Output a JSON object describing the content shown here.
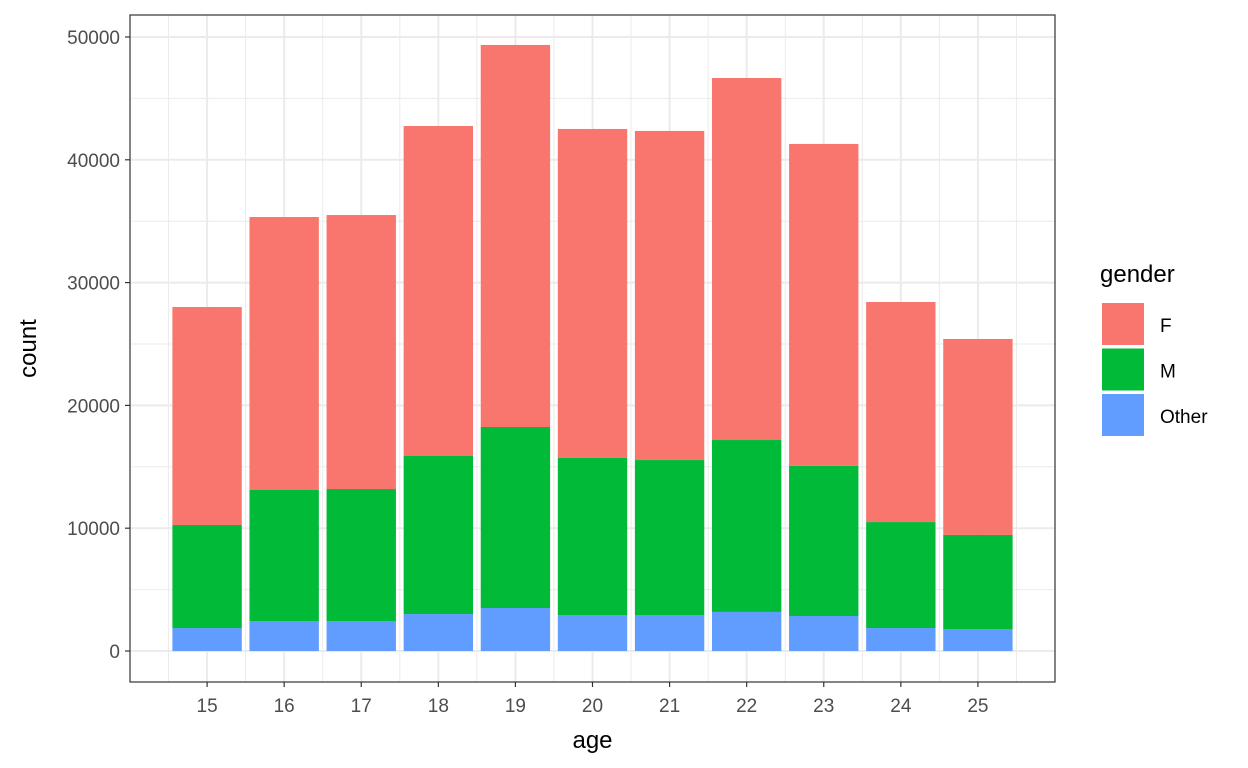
{
  "chart_data": {
    "type": "bar",
    "stacked": true,
    "title": "",
    "xlabel": "age",
    "ylabel": "count",
    "categories": [
      "15",
      "16",
      "17",
      "18",
      "19",
      "20",
      "21",
      "22",
      "23",
      "24",
      "25"
    ],
    "series": [
      {
        "name": "Other",
        "color": "#619CFF",
        "values": [
          1870,
          2440,
          2440,
          3010,
          3500,
          2930,
          2930,
          3180,
          2850,
          1870,
          1790
        ]
      },
      {
        "name": "M",
        "color": "#00BA38",
        "values": [
          8390,
          10670,
          10750,
          12870,
          14740,
          12790,
          12620,
          14000,
          12220,
          8630,
          7660
        ]
      },
      {
        "name": "F",
        "color": "#F8766D",
        "values": [
          17750,
          22230,
          22310,
          26870,
          31110,
          26790,
          26800,
          29480,
          26220,
          17920,
          15960
        ]
      }
    ],
    "ylim": [
      -2524,
      51790
    ],
    "yticks": [
      0,
      10000,
      20000,
      30000,
      40000,
      50000
    ],
    "ytick_labels": [
      "0",
      "10000",
      "20000",
      "30000",
      "40000",
      "50000"
    ],
    "grid": true,
    "legend": {
      "title": "gender",
      "placement": "right",
      "entries": [
        {
          "label": "F",
          "color": "#F8766D"
        },
        {
          "label": "M",
          "color": "#00BA38"
        },
        {
          "label": "Other",
          "color": "#619CFF"
        }
      ]
    }
  }
}
